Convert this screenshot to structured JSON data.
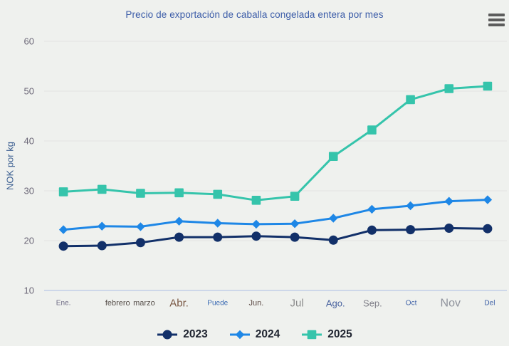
{
  "colors": {
    "background": "#eff1ee",
    "title": "#3b5ca8",
    "grid": "#e3e4e1",
    "axis_line": "#cdd7e9",
    "y_tick_label": "#6c6878",
    "y_axis_title": "#3c5f91",
    "legend_text": "#1f2430",
    "menu_icon": "#5c5c5c"
  },
  "menu": {
    "icon": "hamburger-menu-icon",
    "tooltip": "Chart context menu"
  },
  "chart_data": {
    "type": "line",
    "title": "Precio de exportación de caballa congelada entera por mes",
    "xlabel": "",
    "ylabel": "NOK por kg",
    "ylim": [
      10,
      60
    ],
    "yticks": [
      10,
      20,
      30,
      40,
      50,
      60
    ],
    "grid": true,
    "legend_position": "bottom",
    "categories": [
      "Ene.",
      "febrero",
      "marzo",
      "Abr.",
      "Puede",
      "Jun.",
      "Jul",
      "Ago.",
      "Sep.",
      "Oct",
      "Nov",
      "Del"
    ],
    "x_label_styles": [
      {
        "color": "#6f6c86",
        "size": 10,
        "dx": 0
      },
      {
        "color": "#57504b",
        "size": 11,
        "dx": 22
      },
      {
        "color": "#57504b",
        "size": 11,
        "dx": 5
      },
      {
        "color": "#7a5844",
        "size": 15,
        "dx": 0
      },
      {
        "color": "#3c6cb4",
        "size": 10,
        "dx": 0
      },
      {
        "color": "#5c4a44",
        "size": 11,
        "dx": 0
      },
      {
        "color": "#8c8c8c",
        "size": 15,
        "dx": 3
      },
      {
        "color": "#47619e",
        "size": 13,
        "dx": 3
      },
      {
        "color": "#7f7f88",
        "size": 13,
        "dx": 1
      },
      {
        "color": "#3f62a8",
        "size": 10,
        "dx": 1
      },
      {
        "color": "#8f939c",
        "size": 16,
        "dx": 2
      },
      {
        "color": "#3f62a8",
        "size": 10,
        "dx": 3
      }
    ],
    "series": [
      {
        "name": "2023",
        "color": "#123069",
        "marker": "circle",
        "values": [
          18.9,
          19.0,
          19.6,
          20.7,
          20.7,
          20.9,
          20.7,
          20.1,
          22.1,
          22.2,
          22.5,
          22.4
        ]
      },
      {
        "name": "2024",
        "color": "#1e87e6",
        "marker": "diamond",
        "values": [
          22.2,
          22.9,
          22.8,
          23.9,
          23.5,
          23.3,
          23.4,
          24.5,
          26.3,
          27.0,
          27.9,
          28.2
        ]
      },
      {
        "name": "2025",
        "color": "#35c4ab",
        "marker": "square",
        "values": [
          29.8,
          30.3,
          29.5,
          29.6,
          29.3,
          28.1,
          28.9,
          36.9,
          42.2,
          48.3,
          50.5,
          51.0
        ]
      }
    ]
  }
}
